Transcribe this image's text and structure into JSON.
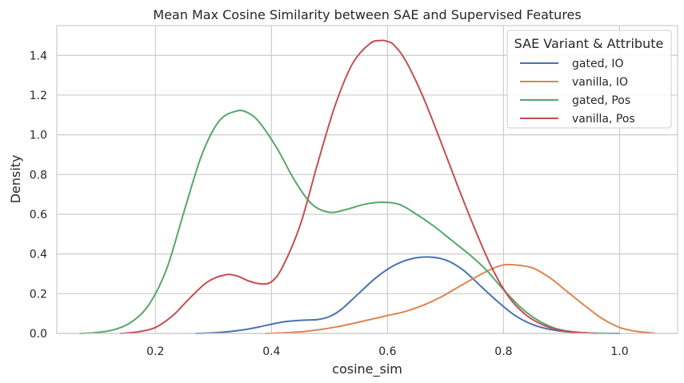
{
  "chart_data": {
    "type": "line",
    "title": "Mean Max Cosine Similarity between SAE and Supervised Features",
    "xlabel": "cosine_sim",
    "ylabel": "Density",
    "xlim": [
      0.03,
      1.1
    ],
    "ylim": [
      0.0,
      1.55
    ],
    "xticks": [
      0.2,
      0.4,
      0.6,
      0.8,
      1.0
    ],
    "xtick_labels": [
      "0.2",
      "0.4",
      "0.6",
      "0.8",
      "1.0"
    ],
    "yticks": [
      0.0,
      0.2,
      0.4,
      0.6,
      0.8,
      1.0,
      1.2,
      1.4
    ],
    "ytick_labels": [
      "0.0",
      "0.2",
      "0.4",
      "0.6",
      "0.8",
      "1.0",
      "1.2",
      "1.4"
    ],
    "grid": true,
    "legend": {
      "title": "SAE Variant & Attribute",
      "position": "top-right"
    },
    "series": [
      {
        "name": "gated, IO",
        "color": "#4c72b0",
        "x": [
          0.27,
          0.3,
          0.33,
          0.36,
          0.39,
          0.42,
          0.45,
          0.48,
          0.5,
          0.52,
          0.55,
          0.58,
          0.61,
          0.64,
          0.67,
          0.7,
          0.73,
          0.76,
          0.79,
          0.82,
          0.85,
          0.88,
          0.91,
          0.94,
          0.97,
          1.0
        ],
        "y": [
          0.0,
          0.003,
          0.01,
          0.022,
          0.04,
          0.058,
          0.066,
          0.07,
          0.085,
          0.12,
          0.2,
          0.28,
          0.34,
          0.375,
          0.385,
          0.37,
          0.32,
          0.24,
          0.16,
          0.09,
          0.045,
          0.02,
          0.008,
          0.003,
          0.001,
          0.0
        ]
      },
      {
        "name": "vanilla, IO",
        "color": "#dd8452",
        "x": [
          0.39,
          0.42,
          0.45,
          0.48,
          0.51,
          0.54,
          0.57,
          0.6,
          0.63,
          0.66,
          0.69,
          0.72,
          0.75,
          0.78,
          0.8,
          0.82,
          0.85,
          0.88,
          0.91,
          0.94,
          0.97,
          1.0,
          1.03,
          1.06
        ],
        "y": [
          0.0,
          0.003,
          0.008,
          0.018,
          0.032,
          0.05,
          0.07,
          0.09,
          0.11,
          0.14,
          0.18,
          0.23,
          0.28,
          0.325,
          0.345,
          0.345,
          0.33,
          0.28,
          0.21,
          0.14,
          0.075,
          0.03,
          0.01,
          0.002
        ]
      },
      {
        "name": "gated, Pos",
        "color": "#55a868",
        "x": [
          0.07,
          0.1,
          0.13,
          0.16,
          0.19,
          0.22,
          0.25,
          0.28,
          0.31,
          0.34,
          0.36,
          0.38,
          0.41,
          0.44,
          0.47,
          0.5,
          0.53,
          0.56,
          0.59,
          0.62,
          0.65,
          0.68,
          0.71,
          0.74,
          0.77,
          0.8,
          0.83,
          0.86,
          0.89,
          0.92,
          0.95,
          0.98
        ],
        "y": [
          0.0,
          0.005,
          0.02,
          0.06,
          0.15,
          0.33,
          0.62,
          0.9,
          1.07,
          1.12,
          1.11,
          1.06,
          0.93,
          0.77,
          0.65,
          0.61,
          0.625,
          0.65,
          0.66,
          0.65,
          0.6,
          0.54,
          0.47,
          0.4,
          0.32,
          0.22,
          0.13,
          0.065,
          0.025,
          0.008,
          0.002,
          0.0
        ]
      },
      {
        "name": "vanilla, Pos",
        "color": "#c44e52",
        "x": [
          0.14,
          0.17,
          0.2,
          0.23,
          0.26,
          0.29,
          0.32,
          0.34,
          0.36,
          0.38,
          0.4,
          0.42,
          0.45,
          0.48,
          0.51,
          0.54,
          0.57,
          0.59,
          0.6,
          0.61,
          0.63,
          0.66,
          0.69,
          0.72,
          0.75,
          0.78,
          0.81,
          0.84,
          0.87,
          0.9,
          0.93,
          0.96
        ],
        "y": [
          0.0,
          0.008,
          0.03,
          0.09,
          0.18,
          0.26,
          0.295,
          0.29,
          0.265,
          0.25,
          0.26,
          0.34,
          0.55,
          0.86,
          1.15,
          1.36,
          1.46,
          1.475,
          1.47,
          1.455,
          1.38,
          1.2,
          0.98,
          0.75,
          0.53,
          0.33,
          0.18,
          0.09,
          0.04,
          0.015,
          0.005,
          0.0
        ]
      }
    ]
  }
}
